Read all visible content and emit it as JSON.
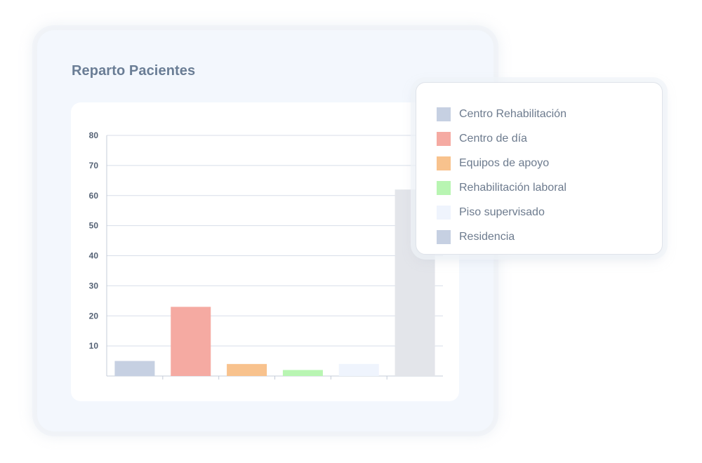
{
  "card": {
    "title": "Reparto Pacientes"
  },
  "colors": {
    "card_background": "#f3f7fd",
    "panel_background": "#ffffff",
    "grid": "#d8dee9",
    "axis": "#c4ccd8",
    "title_text": "#6a7d95",
    "legend_text": "#6d7b8e"
  },
  "chart_data": {
    "type": "bar",
    "categories": [
      "Centro Rehabilitación",
      "Centro de día",
      "Equipos de apoyo",
      "Rehabilitación laboral",
      "Piso supervisado",
      "Residencia"
    ],
    "values": [
      5,
      23,
      4,
      2,
      4,
      62
    ],
    "colors": [
      "#c6d0e2",
      "#f5aaa2",
      "#f8c28d",
      "#b8f5b2",
      "#eff4fd",
      "#e3e5ea"
    ],
    "legend_colors": [
      "#c6d0e2",
      "#f5aaa2",
      "#f8c28d",
      "#b8f5b2",
      "#eff4fd",
      "#c6d0e2"
    ],
    "title": "",
    "xlabel": "",
    "ylabel": "",
    "ylim": [
      0,
      80
    ],
    "yticks": [
      10,
      20,
      30,
      40,
      50,
      60,
      70,
      80
    ],
    "grid": true,
    "legend_position": "top-right"
  }
}
